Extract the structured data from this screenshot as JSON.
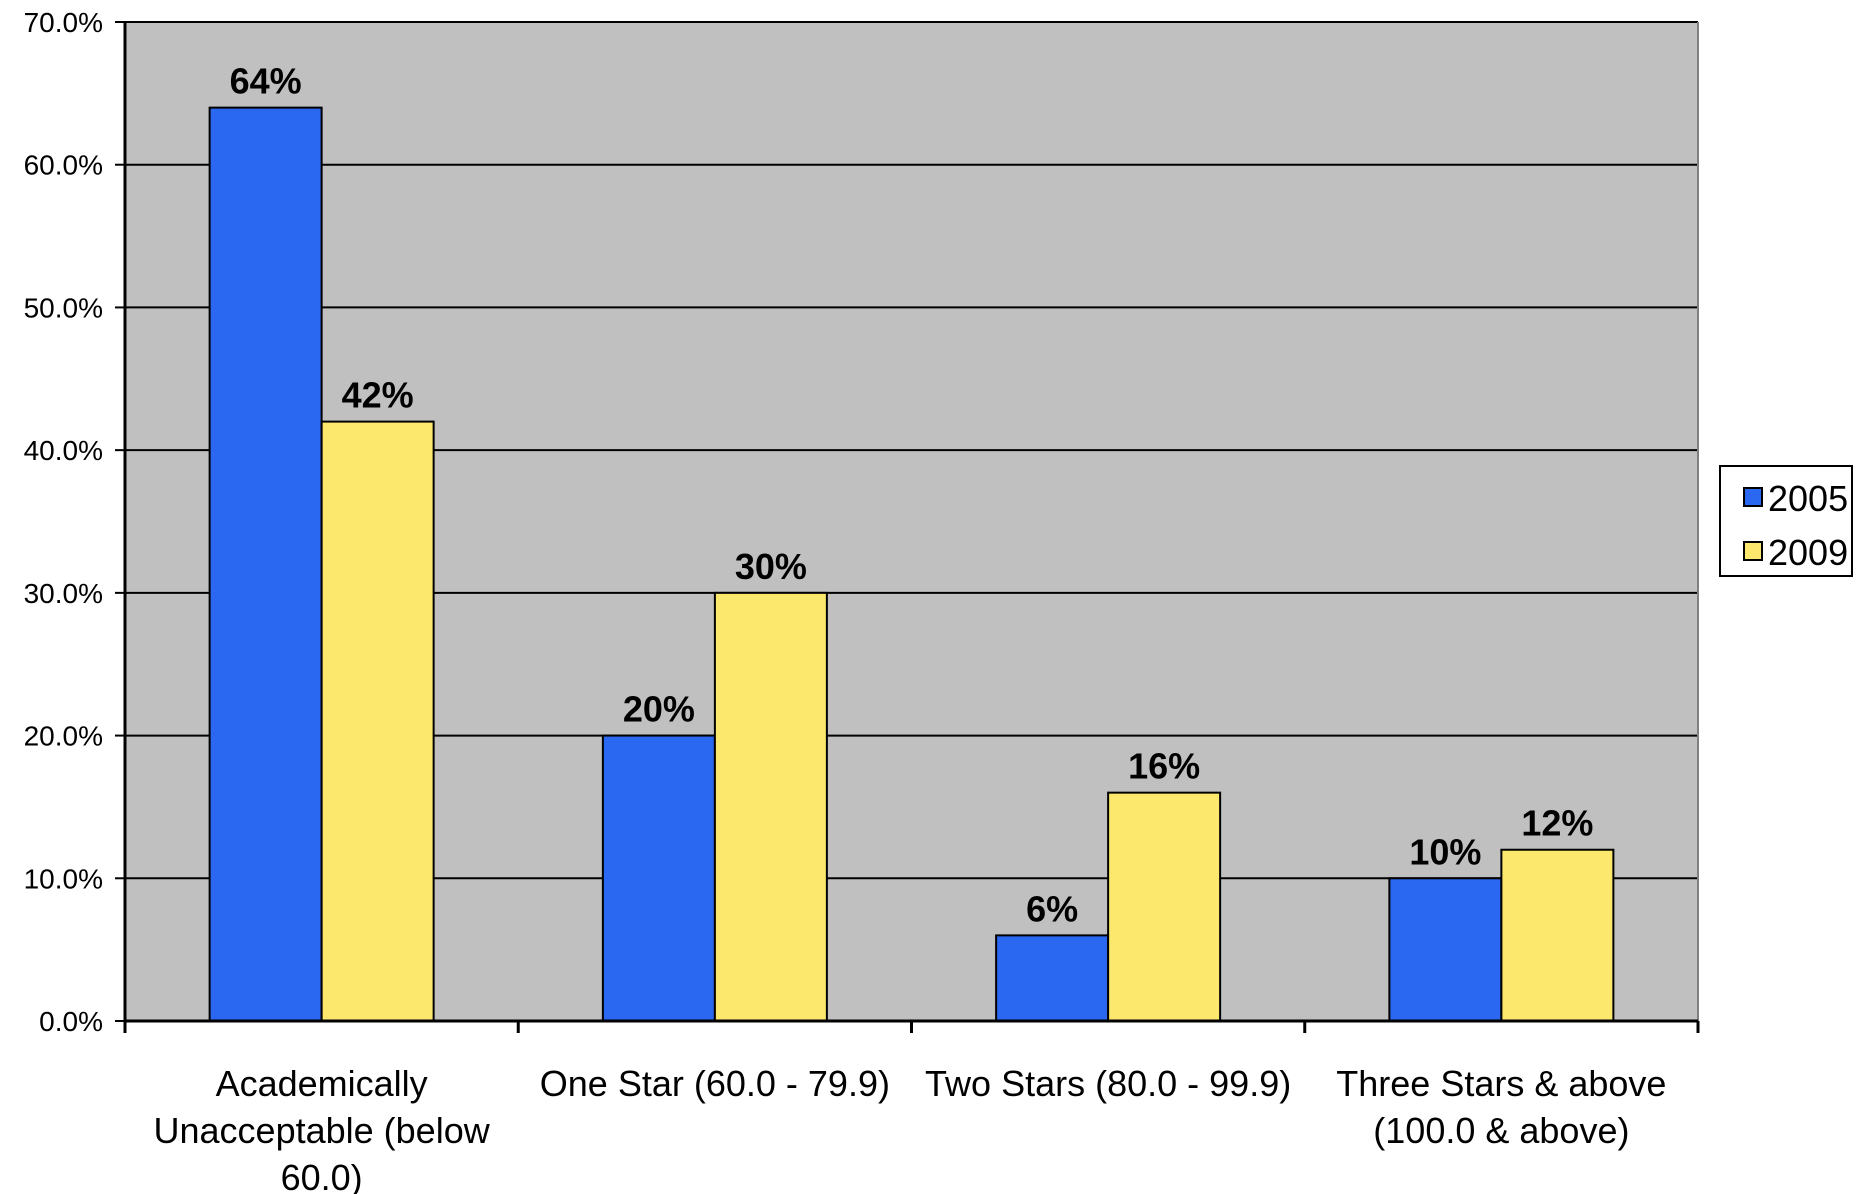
{
  "chart_data": {
    "type": "bar",
    "title": "",
    "xlabel": "",
    "ylabel": "",
    "categories": [
      [
        "Academically",
        "Unacceptable (below",
        "60.0)"
      ],
      [
        "One Star (60.0 - 79.9)"
      ],
      [
        "Two Stars (80.0 - 99.9)"
      ],
      [
        "Three Stars & above",
        "(100.0 & above)"
      ]
    ],
    "series": [
      {
        "name": "2005",
        "color": "#2B68F2",
        "values": [
          64,
          20,
          6,
          10
        ],
        "labels": [
          "64%",
          "20%",
          "6%",
          "10%"
        ]
      },
      {
        "name": "2009",
        "color": "#FDE86E",
        "values": [
          42,
          30,
          16,
          12
        ],
        "labels": [
          "42%",
          "30%",
          "16%",
          "12%"
        ]
      }
    ],
    "ylim": [
      0,
      70
    ],
    "yticks": [
      "0.0%",
      "10.0%",
      "20.0%",
      "30.0%",
      "40.0%",
      "50.0%",
      "60.0%",
      "70.0%"
    ],
    "grid": true,
    "legend_position": "right",
    "plot_background": "#C0C0C0"
  }
}
